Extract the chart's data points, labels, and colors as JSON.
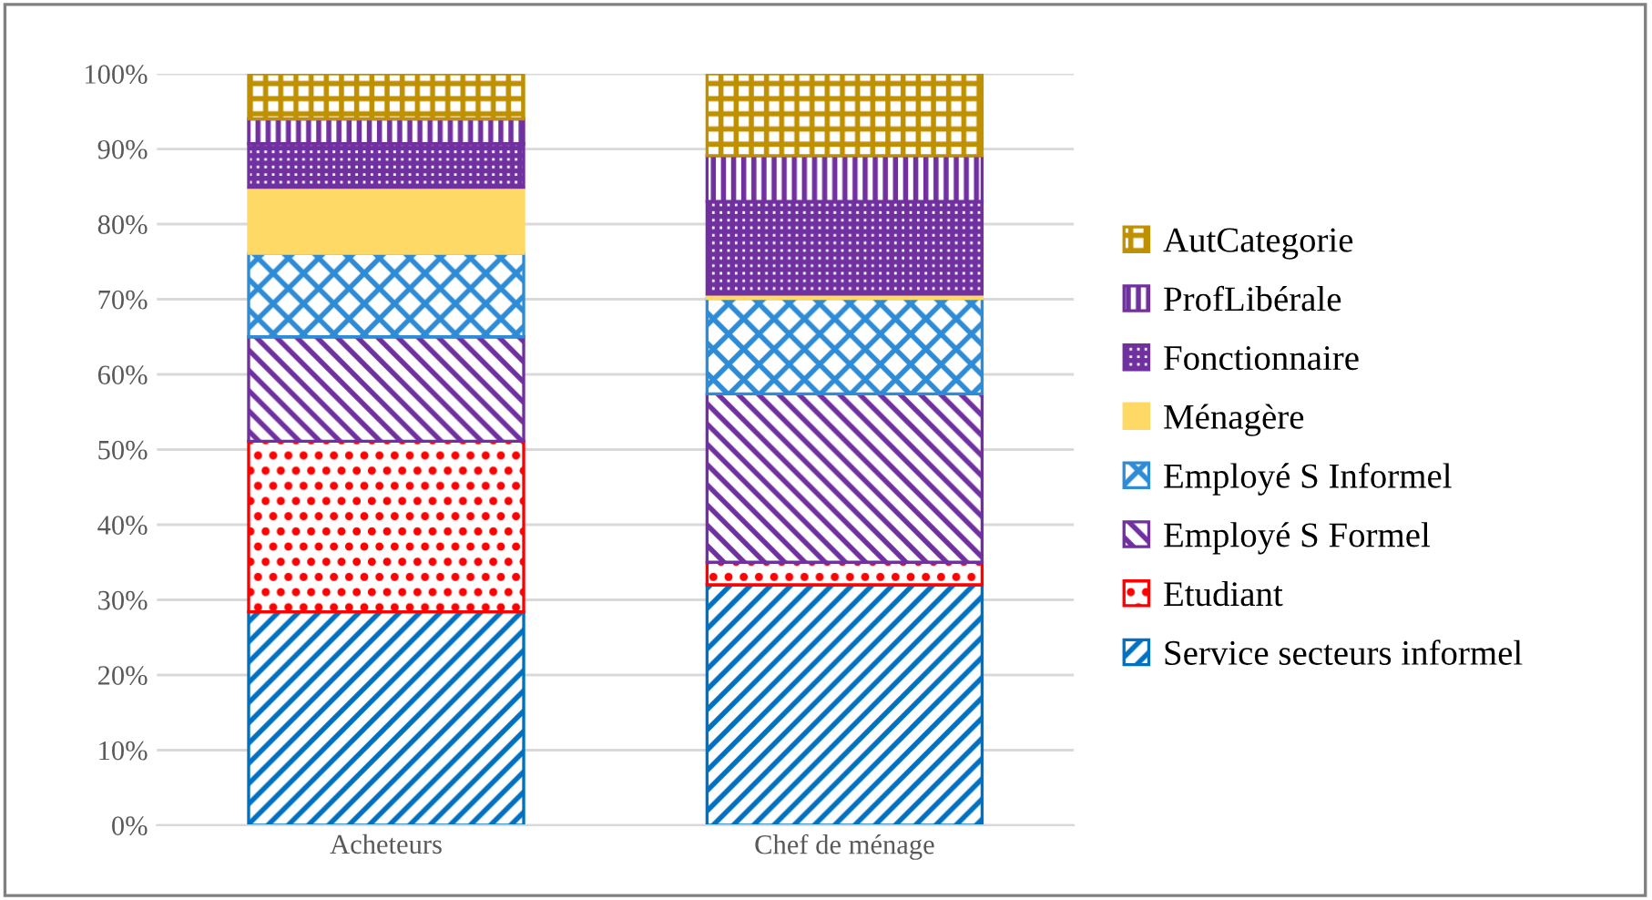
{
  "chart_data": {
    "type": "bar",
    "stacked": true,
    "categories": [
      "Acheteurs",
      "Chef de ménage"
    ],
    "series": [
      {
        "name": "Service secteurs informel",
        "color": "#0070c0",
        "values": [
          28.4,
          32.0
        ]
      },
      {
        "name": "Etudiant",
        "color": "#ff0000",
        "values": [
          22.7,
          3.0
        ]
      },
      {
        "name": "Employé S Formel",
        "color": "#7030a0",
        "values": [
          13.9,
          22.4
        ]
      },
      {
        "name": "Employé S Informel",
        "color": "#2e8bd6",
        "values": [
          11.1,
          12.7
        ]
      },
      {
        "name": "Ménagère",
        "color": "#ffd966",
        "values": [
          8.8,
          0.6
        ]
      },
      {
        "name": "Fonctionnaire",
        "color": "#7030a0",
        "values": [
          5.8,
          12.3
        ]
      },
      {
        "name": "ProfLibérale",
        "color": "#7030a0",
        "values": [
          3.3,
          6.1
        ]
      },
      {
        "name": "AutCategorie",
        "color": "#bf9000",
        "values": [
          6.0,
          10.9
        ]
      }
    ],
    "ylim": [
      0,
      100
    ],
    "yticks": [
      {
        "value": 0,
        "label": "0%"
      },
      {
        "value": 10,
        "label": "10%"
      },
      {
        "value": 20,
        "label": "20%"
      },
      {
        "value": 30,
        "label": "30%"
      },
      {
        "value": 40,
        "label": "40%"
      },
      {
        "value": 50,
        "label": "50%"
      },
      {
        "value": 60,
        "label": "60%"
      },
      {
        "value": 70,
        "label": "70%"
      },
      {
        "value": 80,
        "label": "80%"
      },
      {
        "value": 90,
        "label": "90%"
      },
      {
        "value": 100,
        "label": "100%"
      }
    ],
    "grid": "y",
    "legend": "right"
  }
}
